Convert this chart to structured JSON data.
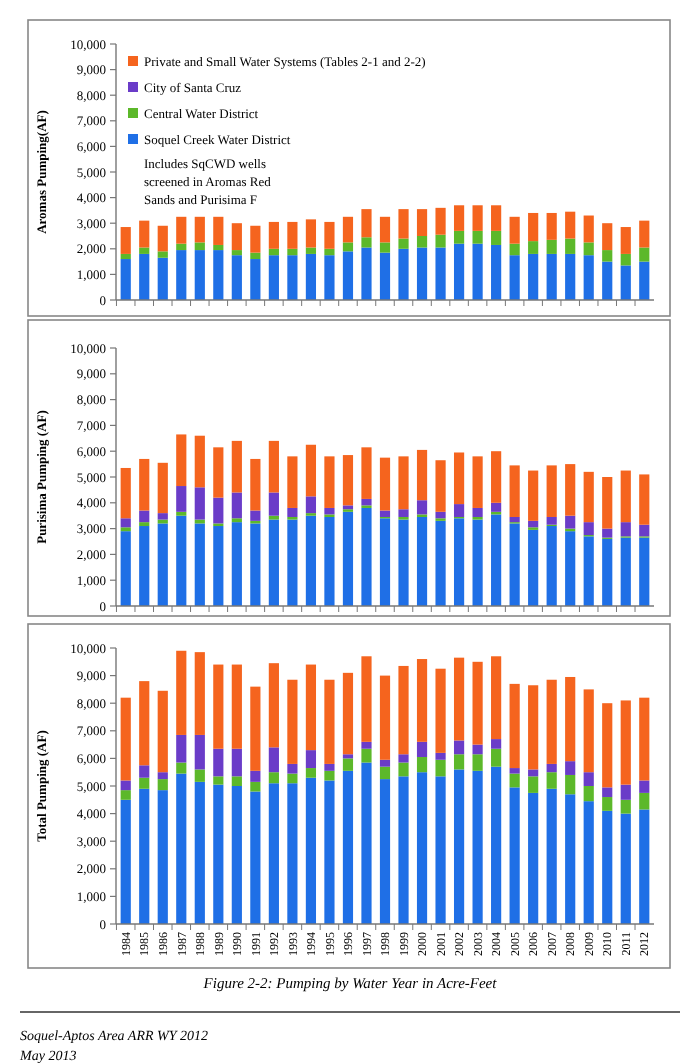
{
  "chart_data": [
    {
      "type": "bar",
      "stacked": true,
      "ylabel": "Aromas Pumping(AF)",
      "legend": "top left",
      "tick_labels": "y",
      "ylim": [
        0,
        10000
      ],
      "yticks": [
        {
          "value": 0,
          "label": "0"
        },
        {
          "value": 1000,
          "label": "1,000"
        },
        {
          "value": 2000,
          "label": "2,000"
        },
        {
          "value": 3000,
          "label": "3,000"
        },
        {
          "value": 4000,
          "label": "4,000"
        },
        {
          "value": 5000,
          "label": "5,000"
        },
        {
          "value": 6000,
          "label": "6,000"
        },
        {
          "value": 7000,
          "label": "7,000"
        },
        {
          "value": 8000,
          "label": "8,000"
        },
        {
          "value": 9000,
          "label": "9,000"
        },
        {
          "value": 10000,
          "label": "10,000"
        }
      ],
      "categories": [
        "1984",
        "1985",
        "1986",
        "1987",
        "1988",
        "1989",
        "1990",
        "1991",
        "1992",
        "1993",
        "1994",
        "1995",
        "1996",
        "1997",
        "1998",
        "1999",
        "2000",
        "2001",
        "2002",
        "2003",
        "2004",
        "2005",
        "2006",
        "2007",
        "2008",
        "2009",
        "2010",
        "2011",
        "2012"
      ],
      "annotations": [
        "Includes SqCWD wells screened in Aromas Red Sands and Purisima F"
      ],
      "series": [
        {
          "name": "Soquel Creek Water District",
          "color": "#1f6fe6",
          "values": [
            1600,
            1800,
            1650,
            1950,
            1950,
            1950,
            1750,
            1600,
            1750,
            1750,
            1800,
            1750,
            1900,
            2050,
            1850,
            2000,
            2050,
            2050,
            2200,
            2200,
            2150,
            1750,
            1800,
            1800,
            1800,
            1750,
            1500,
            1350,
            1500
          ]
        },
        {
          "name": "Central Water District",
          "color": "#5cb82a",
          "values": [
            200,
            250,
            250,
            250,
            300,
            200,
            200,
            250,
            250,
            250,
            250,
            250,
            350,
            400,
            400,
            400,
            450,
            500,
            500,
            500,
            550,
            450,
            500,
            550,
            600,
            500,
            450,
            450,
            550
          ]
        },
        {
          "name": "City of Santa Cruz",
          "color": "#6a3cc8",
          "values": [
            0,
            0,
            0,
            0,
            0,
            0,
            0,
            0,
            0,
            0,
            0,
            0,
            0,
            0,
            0,
            0,
            0,
            0,
            0,
            0,
            0,
            0,
            0,
            0,
            0,
            0,
            0,
            0,
            0
          ]
        },
        {
          "name": "Private and Small Water Systems (Tables 2-1 and 2-2)",
          "color": "#f5641e",
          "values": [
            1050,
            1050,
            1000,
            1050,
            1000,
            1100,
            1050,
            1050,
            1050,
            1050,
            1100,
            1050,
            1000,
            1100,
            1000,
            1150,
            1050,
            1050,
            1000,
            1000,
            1000,
            1050,
            1100,
            1050,
            1050,
            1050,
            1050,
            1050,
            1050
          ]
        }
      ]
    },
    {
      "type": "bar",
      "stacked": true,
      "ylabel": "Purisima Pumping (AF)",
      "tick_labels": "y",
      "ylim": [
        0,
        10000
      ],
      "yticks": [
        {
          "value": 0,
          "label": "0"
        },
        {
          "value": 1000,
          "label": "1,000"
        },
        {
          "value": 2000,
          "label": "2,000"
        },
        {
          "value": 3000,
          "label": "3,000"
        },
        {
          "value": 4000,
          "label": "4,000"
        },
        {
          "value": 5000,
          "label": "5,000"
        },
        {
          "value": 6000,
          "label": "6,000"
        },
        {
          "value": 7000,
          "label": "7,000"
        },
        {
          "value": 8000,
          "label": "8,000"
        },
        {
          "value": 9000,
          "label": "9,000"
        },
        {
          "value": 10000,
          "label": "10,000"
        }
      ],
      "categories": [
        "1984",
        "1985",
        "1986",
        "1987",
        "1988",
        "1989",
        "1990",
        "1991",
        "1992",
        "1993",
        "1994",
        "1995",
        "1996",
        "1997",
        "1998",
        "1999",
        "2000",
        "2001",
        "2002",
        "2003",
        "2004",
        "2005",
        "2006",
        "2007",
        "2008",
        "2009",
        "2010",
        "2011",
        "2012"
      ],
      "series": [
        {
          "color": "#1f6fe6",
          "values": [
            2900,
            3100,
            3200,
            3500,
            3200,
            3100,
            3250,
            3200,
            3350,
            3350,
            3500,
            3450,
            3650,
            3800,
            3400,
            3350,
            3450,
            3300,
            3400,
            3350,
            3550,
            3200,
            2950,
            3100,
            2900,
            2700,
            2600,
            2650,
            2650
          ]
        },
        {
          "color": "#5cb82a",
          "values": [
            150,
            150,
            150,
            150,
            150,
            100,
            150,
            100,
            150,
            100,
            100,
            100,
            100,
            100,
            50,
            100,
            100,
            100,
            50,
            100,
            100,
            50,
            100,
            50,
            100,
            50,
            50,
            50,
            50
          ]
        },
        {
          "color": "#6a3cc8",
          "values": [
            350,
            450,
            250,
            1000,
            1250,
            1000,
            1000,
            400,
            900,
            350,
            650,
            250,
            150,
            250,
            250,
            300,
            550,
            250,
            500,
            350,
            350,
            200,
            250,
            300,
            500,
            500,
            350,
            550,
            450
          ]
        },
        {
          "color": "#f5641e",
          "values": [
            1950,
            2000,
            1950,
            2000,
            2000,
            1950,
            2000,
            2000,
            2000,
            2000,
            2000,
            2000,
            1950,
            2000,
            2050,
            2050,
            1950,
            2000,
            2000,
            2000,
            2000,
            2000,
            1950,
            2000,
            2000,
            1950,
            2000,
            2000,
            1950
          ]
        }
      ]
    },
    {
      "type": "bar",
      "stacked": true,
      "ylabel": "Total Pumping (AF)",
      "ylim": [
        0,
        10000
      ],
      "yticks": [
        {
          "value": 0,
          "label": "0"
        },
        {
          "value": 1000,
          "label": "1,000"
        },
        {
          "value": 2000,
          "label": "2,000"
        },
        {
          "value": 3000,
          "label": "3,000"
        },
        {
          "value": 4000,
          "label": "4,000"
        },
        {
          "value": 5000,
          "label": "5,000"
        },
        {
          "value": 6000,
          "label": "6,000"
        },
        {
          "value": 7000,
          "label": "7,000"
        },
        {
          "value": 8000,
          "label": "8,000"
        },
        {
          "value": 9000,
          "label": "9,000"
        },
        {
          "value": 10000,
          "label": "10,000"
        }
      ],
      "categories": [
        "1984",
        "1985",
        "1986",
        "1987",
        "1988",
        "1989",
        "1990",
        "1991",
        "1992",
        "1993",
        "1994",
        "1995",
        "1996",
        "1997",
        "1998",
        "1999",
        "2000",
        "2001",
        "2002",
        "2003",
        "2004",
        "2005",
        "2006",
        "2007",
        "2008",
        "2009",
        "2010",
        "2011",
        "2012"
      ],
      "annotations": [
        "Figure 2-2: Pumping by Water Year in Acre-Feet",
        "Soquel-Aptos Area ARR WY 2012",
        "May 2013"
      ],
      "series": [
        {
          "color": "#1f6fe6",
          "values": [
            4500,
            4900,
            4850,
            5450,
            5150,
            5050,
            5000,
            4800,
            5100,
            5100,
            5300,
            5200,
            5550,
            5850,
            5250,
            5350,
            5500,
            5350,
            5600,
            5550,
            5700,
            4950,
            4750,
            4900,
            4700,
            4450,
            4100,
            4000,
            4150
          ]
        },
        {
          "color": "#5cb82a",
          "values": [
            350,
            400,
            400,
            400,
            450,
            300,
            350,
            350,
            400,
            350,
            350,
            350,
            450,
            500,
            450,
            500,
            550,
            600,
            550,
            600,
            650,
            500,
            600,
            600,
            700,
            550,
            500,
            500,
            600
          ]
        },
        {
          "color": "#6a3cc8",
          "values": [
            350,
            450,
            250,
            1000,
            1250,
            1000,
            1000,
            400,
            900,
            350,
            650,
            250,
            150,
            250,
            250,
            300,
            550,
            250,
            500,
            350,
            350,
            200,
            250,
            300,
            500,
            500,
            350,
            550,
            450
          ]
        },
        {
          "color": "#f5641e",
          "values": [
            3000,
            3050,
            2950,
            3050,
            3000,
            3050,
            3050,
            3050,
            3050,
            3050,
            3100,
            3050,
            2950,
            3100,
            3050,
            3200,
            3000,
            3050,
            3000,
            3000,
            3000,
            3050,
            3050,
            3050,
            3050,
            3000,
            3050,
            3050,
            3000
          ]
        }
      ]
    }
  ]
}
